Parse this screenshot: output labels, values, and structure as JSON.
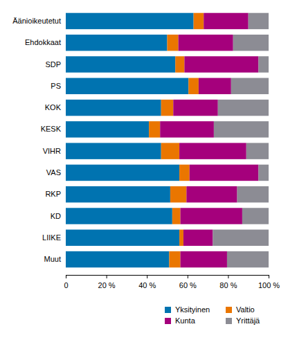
{
  "chart_data": {
    "type": "bar",
    "orientation": "horizontal",
    "stacked": true,
    "grid": false,
    "legend": "bottom",
    "categories": [
      "Äänioikeutetut",
      "Ehdokkaat",
      "SDP",
      "PS",
      "KOK",
      "KESK",
      "VIHR",
      "VAS",
      "RKP",
      "KD",
      "LIIKE",
      "Muut"
    ],
    "series": [
      {
        "name": "Yksityinen",
        "color": "#0073b0",
        "values": [
          63,
          50,
          54,
          60.5,
          47,
          41,
          47,
          56,
          51.5,
          52.5,
          56,
          51
        ]
      },
      {
        "name": "Valtio",
        "color": "#ea7600",
        "values": [
          5,
          5.5,
          4.5,
          5,
          6,
          5.5,
          9,
          5,
          8,
          4,
          2,
          5.5
        ]
      },
      {
        "name": "Kunta",
        "color": "#a5007c",
        "values": [
          22,
          27,
          36.5,
          16,
          22,
          26.5,
          33,
          34,
          25,
          30.5,
          14.5,
          23
        ]
      },
      {
        "name": "Yrittäjä",
        "color": "#8c8c94",
        "values": [
          10,
          17.5,
          5,
          18.5,
          25,
          27,
          11,
          5,
          15.5,
          13,
          27.5,
          20.5
        ]
      }
    ],
    "xlim": [
      0,
      100
    ],
    "xticks": [
      0,
      {
        "value": 20,
        "label": "20 %"
      },
      {
        "value": 40,
        "label": "40 %"
      },
      {
        "value": 60,
        "label": "60 %"
      },
      {
        "value": 80,
        "label": "80 %"
      },
      {
        "value": 100,
        "label": "100 %"
      }
    ]
  }
}
